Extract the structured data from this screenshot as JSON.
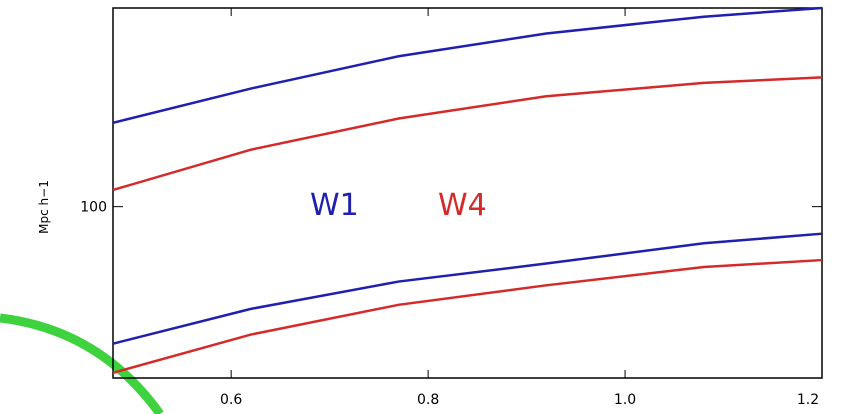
{
  "chart_data": {
    "type": "line",
    "y_label": "Mpc h−1",
    "x": [
      0.48,
      0.62,
      0.77,
      0.92,
      1.08,
      1.2
    ],
    "series": [
      {
        "color": "#1f1fb0",
        "values": [
          134,
          151,
          169,
          183,
          194,
          200
        ]
      },
      {
        "color": "#d42a2a",
        "values": [
          106,
          122,
          136,
          147,
          154,
          157
        ]
      },
      {
        "color": "#1f1fb0",
        "values": [
          62,
          70,
          77,
          82,
          88,
          91
        ]
      },
      {
        "color": "#d42a2a",
        "values": [
          56,
          64,
          71,
          76,
          81,
          83
        ]
      }
    ],
    "annotations": [
      {
        "text": "W1",
        "color": "#1f1fb0",
        "x": 0.68,
        "y": 100
      },
      {
        "text": "W4",
        "color": "#d42a2a",
        "x": 0.81,
        "y": 100
      }
    ],
    "xlim": [
      0.48,
      1.2
    ],
    "xticks": [
      0.6,
      0.8,
      1.0,
      1.2
    ],
    "ylim": [
      55,
      200
    ],
    "yticks": [
      100
    ],
    "log_y": true
  }
}
